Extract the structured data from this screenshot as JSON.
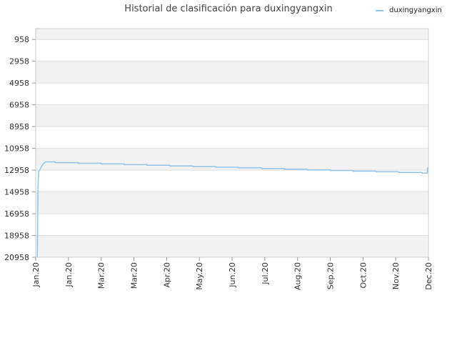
{
  "chart_data": {
    "type": "line",
    "title": "Historial de clasificación para duxingyangxin",
    "xlabel": "",
    "ylabel": "",
    "y_inverted": true,
    "ylim": [
      20958,
      -42
    ],
    "y_ticks": [
      958,
      2958,
      4958,
      6958,
      8958,
      10958,
      12958,
      14958,
      16958,
      18958,
      20958
    ],
    "x_ticks": [
      "Jan.20",
      "Jan.20",
      "Mar.20",
      "Mar.20",
      "Apr.20",
      "May.20",
      "Jun.20",
      "Jul.20",
      "Aug.20",
      "Sep.20",
      "Oct.20",
      "Nov.20",
      "Dec.20"
    ],
    "x_range": [
      0,
      12
    ],
    "grid": true,
    "legend": "top-right",
    "series": [
      {
        "name": "duxingyangxin",
        "color": "#92c2ea",
        "points": [
          [
            0.05,
            20958
          ],
          [
            0.07,
            14500
          ],
          [
            0.09,
            13100
          ],
          [
            0.13,
            12900
          ],
          [
            0.22,
            12400
          ],
          [
            0.3,
            12200
          ],
          [
            0.6,
            12200
          ],
          [
            0.6,
            12270
          ],
          [
            1.3,
            12270
          ],
          [
            1.3,
            12330
          ],
          [
            2.0,
            12330
          ],
          [
            2.0,
            12390
          ],
          [
            2.7,
            12390
          ],
          [
            2.7,
            12450
          ],
          [
            3.4,
            12450
          ],
          [
            3.4,
            12510
          ],
          [
            4.1,
            12510
          ],
          [
            4.1,
            12570
          ],
          [
            4.8,
            12570
          ],
          [
            4.8,
            12630
          ],
          [
            5.5,
            12630
          ],
          [
            5.5,
            12690
          ],
          [
            6.2,
            12690
          ],
          [
            6.2,
            12750
          ],
          [
            6.9,
            12750
          ],
          [
            6.9,
            12810
          ],
          [
            7.6,
            12810
          ],
          [
            7.6,
            12870
          ],
          [
            8.3,
            12870
          ],
          [
            8.3,
            12930
          ],
          [
            9.0,
            12930
          ],
          [
            9.0,
            12990
          ],
          [
            9.7,
            12990
          ],
          [
            9.7,
            13050
          ],
          [
            10.4,
            13050
          ],
          [
            10.4,
            13110
          ],
          [
            11.1,
            13110
          ],
          [
            11.1,
            13170
          ],
          [
            11.8,
            13170
          ],
          [
            11.8,
            13230
          ],
          [
            11.97,
            13230
          ],
          [
            11.97,
            12700
          ]
        ]
      }
    ],
    "colors": {
      "band_alt": "#f2f2f2",
      "band": "#ffffff",
      "grid": "#dddddd",
      "axis": "#cccccc"
    }
  }
}
